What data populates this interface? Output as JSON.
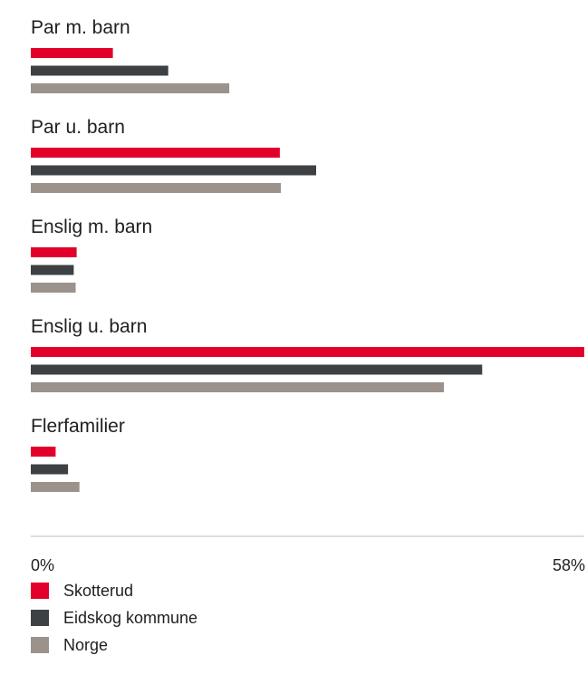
{
  "chart_data": {
    "type": "bar",
    "orientation": "horizontal",
    "categories": [
      "Par m. barn",
      "Par u. barn",
      "Enslig m. barn",
      "Enslig u. barn",
      "Flerfamilier"
    ],
    "series": [
      {
        "name": "Skotterud",
        "color": "#e2002b",
        "values": [
          8.6,
          26.1,
          4.8,
          58.0,
          2.6
        ]
      },
      {
        "name": "Eidskog kommune",
        "color": "#3d4144",
        "values": [
          14.4,
          29.9,
          4.5,
          47.3,
          3.9
        ]
      },
      {
        "name": "Norge",
        "color": "#9b928c",
        "values": [
          20.8,
          26.2,
          4.7,
          43.3,
          5.1
        ]
      }
    ],
    "xlim": [
      0,
      58
    ],
    "tick_labels": [
      "0%",
      "58%"
    ],
    "legend_position": "bottom",
    "grid": false,
    "axis_color": "#bcbcbc"
  }
}
